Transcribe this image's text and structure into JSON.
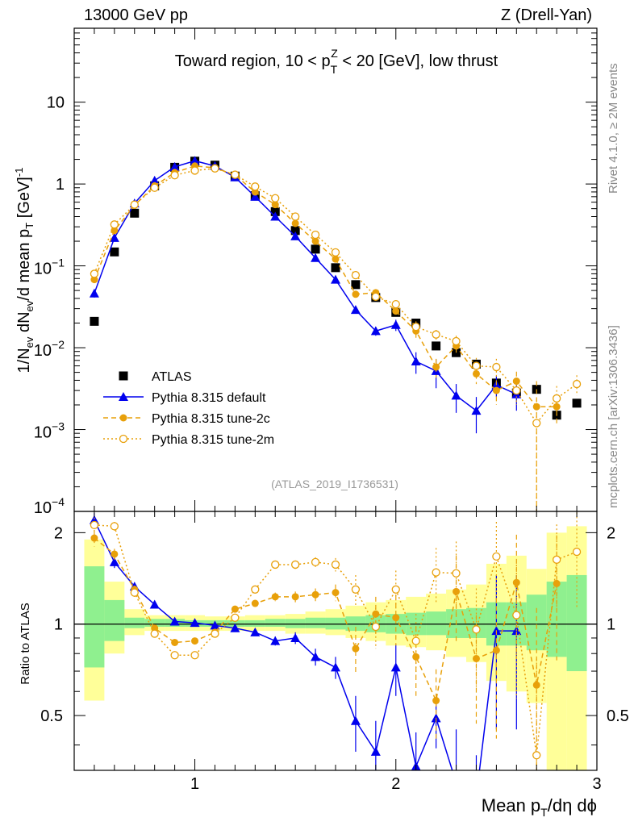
{
  "header": {
    "left": "13000 GeV pp",
    "right": "Z (Drell-Yan)"
  },
  "side_labels": {
    "version": "Rivet 4.1.0, ≥ 2M events",
    "source": "mcplots.cern.ch [arXiv:1306.3436]"
  },
  "chart_data": {
    "type": "scatter",
    "title": "Toward region, 10 < p_T^Z < 20 [GeV], low thrust",
    "title_parts": {
      "pre": "Toward region, 10 < p",
      "sub": "T",
      "sup": "Z",
      "post": " < 20 [GeV], low thrust"
    },
    "analysis_id": "(ATLAS_2019_I1736531)",
    "xlabel": "Mean p_T/dη dϕ",
    "ylabel": "1/N_ev dN_ev/d mean p_T [GeV]^-1",
    "ratio_ylabel": "Ratio to ATLAS",
    "xlim": [
      0.4,
      3.0
    ],
    "ylim": [
      0.0001,
      80
    ],
    "ratio_ylim": [
      0.33,
      2.35
    ],
    "x_ticks": [
      "1",
      "2",
      "3"
    ],
    "y_ticks": [
      "10^-4",
      "10^-3",
      "10^-2",
      "10^-1",
      "1",
      "10"
    ],
    "ratio_ticks": [
      "0.5",
      "1",
      "2"
    ],
    "legend_position": "bottom-left",
    "x": [
      0.5,
      0.6,
      0.7,
      0.8,
      0.9,
      1.0,
      1.1,
      1.2,
      1.3,
      1.4,
      1.5,
      1.6,
      1.7,
      1.8,
      1.9,
      2.0,
      2.1,
      2.2,
      2.3,
      2.4,
      2.5,
      2.6,
      2.7,
      2.8,
      2.9
    ],
    "band_edges": [
      0.45,
      0.55,
      0.65,
      0.75,
      0.85,
      0.95,
      1.05,
      1.15,
      1.25,
      1.35,
      1.45,
      1.55,
      1.65,
      1.75,
      1.85,
      1.95,
      2.05,
      2.15,
      2.25,
      2.35,
      2.45,
      2.55,
      2.65,
      2.75,
      2.85,
      2.95
    ],
    "bands": {
      "green": [
        [
          0.72,
          1.55
        ],
        [
          0.88,
          1.2
        ],
        [
          0.97,
          1.05
        ],
        [
          0.98,
          1.04
        ],
        [
          0.98,
          1.04
        ],
        [
          0.98,
          1.03
        ],
        [
          0.98,
          1.03
        ],
        [
          0.98,
          1.03
        ],
        [
          0.98,
          1.03
        ],
        [
          0.98,
          1.04
        ],
        [
          0.97,
          1.04
        ],
        [
          0.97,
          1.05
        ],
        [
          0.96,
          1.05
        ],
        [
          0.95,
          1.06
        ],
        [
          0.94,
          1.07
        ],
        [
          0.93,
          1.08
        ],
        [
          0.92,
          1.09
        ],
        [
          0.92,
          1.1
        ],
        [
          0.9,
          1.12
        ],
        [
          0.9,
          1.13
        ],
        [
          0.85,
          1.18
        ],
        [
          0.85,
          1.18
        ],
        [
          0.82,
          1.25
        ],
        [
          0.78,
          1.38
        ],
        [
          0.7,
          1.45
        ]
      ],
      "yellow": [
        [
          0.56,
          1.9
        ],
        [
          0.8,
          1.38
        ],
        [
          0.92,
          1.12
        ],
        [
          0.95,
          1.07
        ],
        [
          0.95,
          1.07
        ],
        [
          0.95,
          1.07
        ],
        [
          0.95,
          1.06
        ],
        [
          0.95,
          1.06
        ],
        [
          0.95,
          1.07
        ],
        [
          0.95,
          1.07
        ],
        [
          0.93,
          1.08
        ],
        [
          0.93,
          1.1
        ],
        [
          0.92,
          1.12
        ],
        [
          0.9,
          1.15
        ],
        [
          0.88,
          1.18
        ],
        [
          0.85,
          1.2
        ],
        [
          0.84,
          1.23
        ],
        [
          0.82,
          1.26
        ],
        [
          0.78,
          1.3
        ],
        [
          0.75,
          1.35
        ],
        [
          0.65,
          1.58
        ],
        [
          0.6,
          1.68
        ],
        [
          0.55,
          1.52
        ],
        [
          0.33,
          2.0
        ],
        [
          0.33,
          2.1
        ]
      ]
    },
    "series": [
      {
        "name": "ATLAS",
        "color": "#000000",
        "marker": "square",
        "line": "none",
        "values": [
          0.021,
          0.148,
          0.44,
          0.95,
          1.6,
          1.9,
          1.7,
          1.25,
          0.72,
          0.46,
          0.27,
          0.16,
          0.095,
          0.059,
          0.041,
          0.027,
          0.02,
          0.0105,
          0.0087,
          0.0063,
          0.0037,
          0.0028,
          0.0031,
          0.0015,
          0.0021
        ]
      },
      {
        "name": "Pythia 8.315 default",
        "color": "#0000ee",
        "marker": "triangle",
        "line": "solid",
        "values": [
          0.046,
          0.22,
          0.58,
          1.1,
          1.62,
          1.92,
          1.66,
          1.21,
          0.7,
          0.4,
          0.23,
          0.125,
          0.068,
          0.029,
          0.016,
          0.019,
          0.0068,
          0.0052,
          0.0026,
          0.0017,
          0.0035,
          0.0027
        ],
        "err": [
          0.005,
          0.01,
          0.01,
          0.02,
          0.02,
          0.02,
          0.02,
          0.015,
          0.01,
          0.01,
          0.005,
          0.004,
          0.003,
          0.003,
          0.002,
          0.003,
          0.002,
          0.002,
          0.001,
          0.0008,
          0.001,
          0.001
        ],
        "ratio": [
          2.2,
          1.6,
          1.33,
          1.16,
          1.02,
          1.01,
          0.99,
          0.97,
          0.94,
          0.88,
          0.9,
          0.78,
          0.72,
          0.48,
          0.38,
          0.72,
          0.34,
          0.49,
          0.3,
          0.27,
          0.95,
          0.95
        ],
        "ratio_err": [
          0.12,
          0.07,
          0.04,
          0.02,
          0.02,
          0.02,
          0.01,
          0.01,
          0.02,
          0.03,
          0.04,
          0.05,
          0.06,
          0.1,
          0.1,
          0.14,
          0.1,
          0.1,
          0.15,
          0.1,
          0.5,
          0.5
        ]
      },
      {
        "name": "Pythia 8.315 tune-2c",
        "color": "#e8a00a",
        "marker": "circle",
        "line": "dashed",
        "values": [
          0.068,
          0.27,
          0.55,
          0.95,
          1.38,
          1.66,
          1.58,
          1.28,
          0.8,
          0.56,
          0.33,
          0.2,
          0.121,
          0.045,
          0.047,
          0.028,
          0.016,
          0.0058,
          0.0105,
          0.0048,
          0.003,
          0.0039,
          0.0019,
          0.0019
        ],
        "err": [
          0.005,
          0.01,
          0.01,
          0.02,
          0.02,
          0.02,
          0.02,
          0.02,
          0.01,
          0.01,
          0.008,
          0.005,
          0.004,
          0.004,
          0.004,
          0.003,
          0.003,
          0.0015,
          0.002,
          0.0012,
          0.001,
          0.0012,
          0.002,
          0.0008
        ],
        "ratio": [
          1.92,
          1.7,
          1.3,
          0.97,
          0.87,
          0.88,
          0.94,
          1.12,
          1.17,
          1.23,
          1.23,
          1.25,
          1.27,
          0.83,
          1.08,
          1.05,
          0.78,
          0.56,
          1.28,
          0.77,
          0.82,
          1.37,
          0.63,
          1.36
        ],
        "ratio_err": [
          0.12,
          0.07,
          0.04,
          0.02,
          0.02,
          0.02,
          0.02,
          0.02,
          0.03,
          0.04,
          0.05,
          0.06,
          0.08,
          0.15,
          0.15,
          0.2,
          0.2,
          0.15,
          0.4,
          0.3,
          0.4,
          0.6,
          0.5,
          0.6
        ]
      },
      {
        "name": "Pythia 8.315 tune-2m",
        "color": "#e8a00a",
        "marker": "open-circle",
        "line": "dotted",
        "values": [
          0.08,
          0.32,
          0.56,
          0.9,
          1.28,
          1.46,
          1.55,
          1.3,
          0.93,
          0.67,
          0.4,
          0.24,
          0.146,
          0.077,
          0.042,
          0.034,
          0.018,
          0.0145,
          0.012,
          0.006,
          0.0058,
          0.003,
          0.0012,
          0.0024,
          0.0036
        ],
        "err": [
          0.005,
          0.01,
          0.01,
          0.02,
          0.02,
          0.02,
          0.02,
          0.02,
          0.01,
          0.01,
          0.008,
          0.005,
          0.004,
          0.004,
          0.004,
          0.003,
          0.003,
          0.002,
          0.002,
          0.0015,
          0.0015,
          0.001,
          0.0011,
          0.001,
          0.001
        ],
        "ratio": [
          2.12,
          2.1,
          1.27,
          0.93,
          0.79,
          0.79,
          0.93,
          1.05,
          1.3,
          1.57,
          1.57,
          1.6,
          1.57,
          1.3,
          0.98,
          1.3,
          0.88,
          1.48,
          1.47,
          0.96,
          1.67,
          1.07,
          0.37,
          1.63,
          1.73
        ],
        "ratio_err": [
          0.12,
          0.07,
          0.04,
          0.02,
          0.02,
          0.02,
          0.02,
          0.02,
          0.03,
          0.04,
          0.05,
          0.06,
          0.08,
          0.15,
          0.15,
          0.2,
          0.2,
          0.3,
          0.4,
          0.35,
          0.5,
          0.5,
          0.4,
          0.5,
          0.6
        ]
      }
    ]
  }
}
